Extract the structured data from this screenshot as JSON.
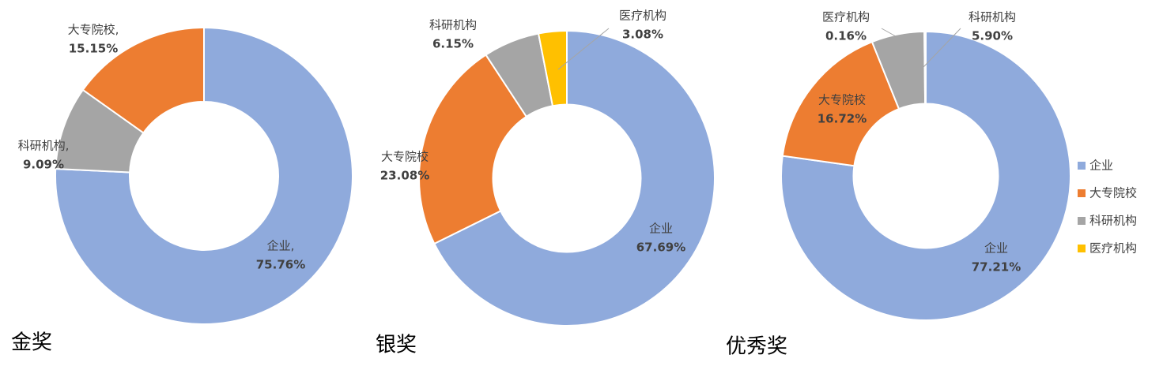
{
  "chart_data": [
    {
      "type": "pie",
      "title": "金奖",
      "hole": 0.5,
      "categories": [
        "企业,",
        "科研机构,",
        "大专院校,"
      ],
      "values": [
        75.76,
        9.09,
        15.15
      ],
      "value_labels": [
        "75.76%",
        "9.09%",
        "15.15%"
      ],
      "colors": [
        "#8faadc",
        "#a5a5a5",
        "#ed7d31"
      ]
    },
    {
      "type": "pie",
      "title": "银奖",
      "hole": 0.5,
      "categories": [
        "企业",
        "大专院校",
        "科研机构",
        "医疗机构"
      ],
      "values": [
        67.69,
        23.08,
        6.15,
        3.08
      ],
      "value_labels": [
        "67.69%",
        "23.08%",
        "6.15%",
        "3.08%"
      ],
      "colors": [
        "#8faadc",
        "#ed7d31",
        "#a5a5a5",
        "#ffc000"
      ]
    },
    {
      "type": "pie",
      "title": "优秀奖",
      "hole": 0.5,
      "categories": [
        "企业",
        "大专院校",
        "科研机构",
        "医疗机构"
      ],
      "values": [
        77.21,
        16.72,
        5.9,
        0.16
      ],
      "value_labels": [
        "77.21%",
        "16.72%",
        "5.90%",
        "0.16%"
      ],
      "colors": [
        "#8faadc",
        "#ed7d31",
        "#a5a5a5",
        "#ffc000"
      ],
      "legend": "right"
    }
  ]
}
